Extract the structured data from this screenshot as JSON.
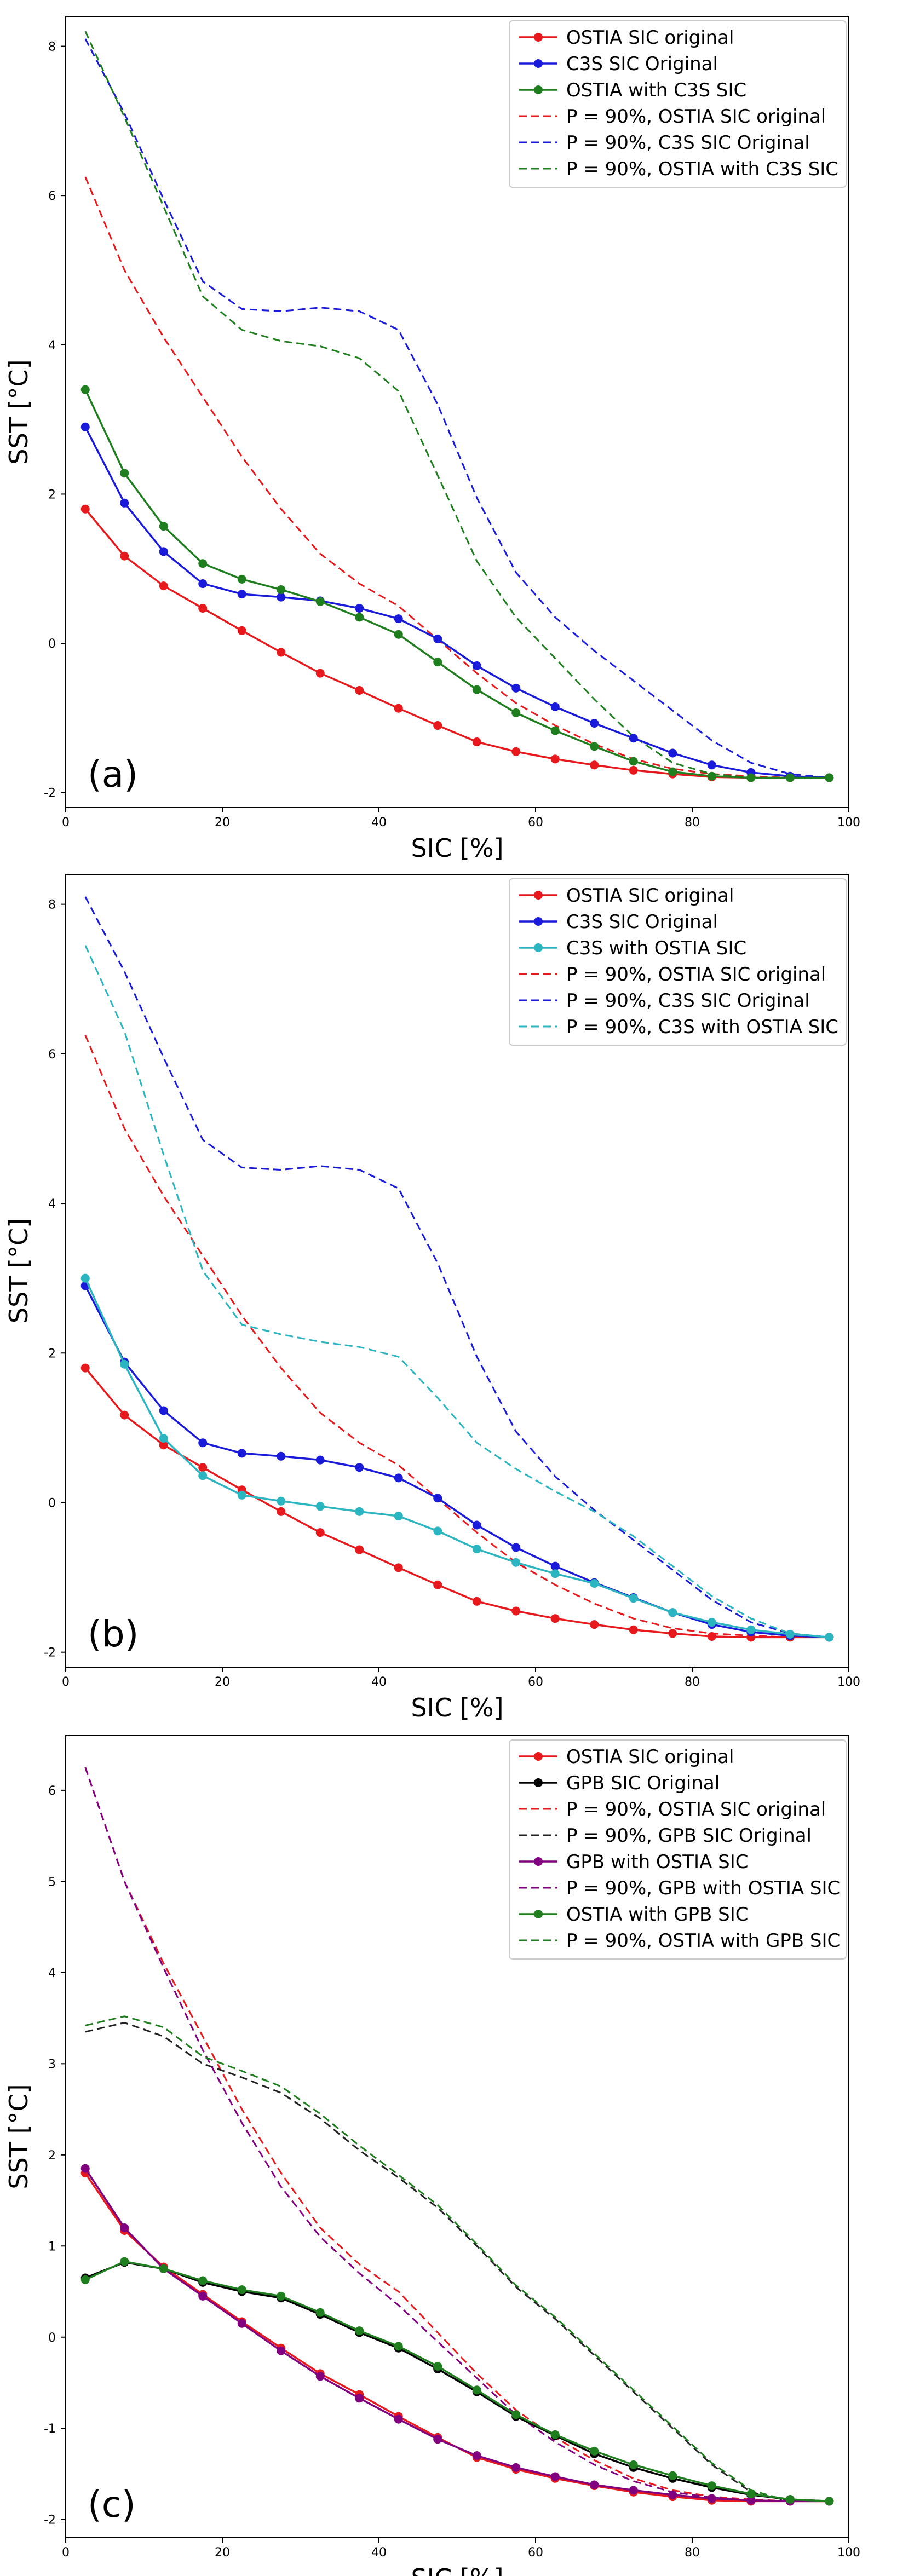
{
  "chart_data": [
    {
      "type": "line",
      "panel_label": "(a)",
      "xlabel": "SIC [%]",
      "ylabel": "SST [°C]",
      "xlim": [
        0,
        100
      ],
      "ylim": [
        -2.2,
        8.4
      ],
      "xticks": [
        0,
        20,
        40,
        60,
        80,
        100
      ],
      "yticks": [
        -2,
        0,
        2,
        4,
        6,
        8
      ],
      "x": [
        2.5,
        7.5,
        12.5,
        17.5,
        22.5,
        27.5,
        32.5,
        37.5,
        42.5,
        47.5,
        52.5,
        57.5,
        62.5,
        67.5,
        72.5,
        77.5,
        82.5,
        87.5,
        92.5,
        97.5
      ],
      "legend_position": "top-right",
      "series": [
        {
          "name": "OSTIA SIC original",
          "color": "#e8191c",
          "style": "solid-marker",
          "values": [
            1.8,
            1.17,
            0.77,
            0.47,
            0.17,
            -0.12,
            -0.4,
            -0.63,
            -0.87,
            -1.1,
            -1.32,
            -1.45,
            -1.55,
            -1.63,
            -1.7,
            -1.75,
            -1.79,
            -1.8,
            -1.8,
            -1.8
          ]
        },
        {
          "name": "C3S SIC Original",
          "color": "#1a1adb",
          "style": "solid-marker",
          "values": [
            2.9,
            1.88,
            1.23,
            0.8,
            0.66,
            0.62,
            0.57,
            0.47,
            0.33,
            0.06,
            -0.3,
            -0.6,
            -0.85,
            -1.07,
            -1.27,
            -1.47,
            -1.63,
            -1.73,
            -1.78,
            -1.8
          ]
        },
        {
          "name": "OSTIA with C3S SIC",
          "color": "#1f7f1f",
          "style": "solid-marker",
          "values": [
            3.4,
            2.28,
            1.57,
            1.07,
            0.86,
            0.72,
            0.56,
            0.35,
            0.12,
            -0.25,
            -0.62,
            -0.93,
            -1.17,
            -1.38,
            -1.58,
            -1.72,
            -1.78,
            -1.8,
            -1.8,
            -1.8
          ]
        },
        {
          "name": "P = 90%, OSTIA SIC original",
          "color": "#e8191c",
          "style": "dashed",
          "values": [
            6.25,
            5.0,
            4.1,
            3.3,
            2.5,
            1.8,
            1.2,
            0.8,
            0.5,
            0.05,
            -0.4,
            -0.8,
            -1.1,
            -1.35,
            -1.55,
            -1.68,
            -1.75,
            -1.78,
            -1.8,
            -1.8
          ]
        },
        {
          "name": "P = 90%, C3S SIC Original",
          "color": "#1a1adb",
          "style": "dashed",
          "values": [
            8.1,
            7.1,
            5.95,
            4.85,
            4.48,
            4.45,
            4.5,
            4.45,
            4.2,
            3.2,
            1.95,
            0.95,
            0.35,
            -0.1,
            -0.5,
            -0.9,
            -1.3,
            -1.6,
            -1.75,
            -1.8
          ]
        },
        {
          "name": "P = 90%, OSTIA with C3S SIC",
          "color": "#1f7f1f",
          "style": "dashed",
          "values": [
            8.2,
            7.05,
            5.85,
            4.65,
            4.2,
            4.05,
            3.98,
            3.82,
            3.38,
            2.25,
            1.1,
            0.35,
            -0.2,
            -0.75,
            -1.25,
            -1.6,
            -1.75,
            -1.8,
            -1.8,
            -1.8
          ]
        }
      ]
    },
    {
      "type": "line",
      "panel_label": "(b)",
      "xlabel": "SIC [%]",
      "ylabel": "SST [°C]",
      "xlim": [
        0,
        100
      ],
      "ylim": [
        -2.2,
        8.4
      ],
      "xticks": [
        0,
        20,
        40,
        60,
        80,
        100
      ],
      "yticks": [
        -2,
        0,
        2,
        4,
        6,
        8
      ],
      "x": [
        2.5,
        7.5,
        12.5,
        17.5,
        22.5,
        27.5,
        32.5,
        37.5,
        42.5,
        47.5,
        52.5,
        57.5,
        62.5,
        67.5,
        72.5,
        77.5,
        82.5,
        87.5,
        92.5,
        97.5
      ],
      "legend_position": "top-right",
      "series": [
        {
          "name": "OSTIA SIC original",
          "color": "#e8191c",
          "style": "solid-marker",
          "values": [
            1.8,
            1.17,
            0.77,
            0.47,
            0.17,
            -0.12,
            -0.4,
            -0.63,
            -0.87,
            -1.1,
            -1.32,
            -1.45,
            -1.55,
            -1.63,
            -1.7,
            -1.75,
            -1.79,
            -1.8,
            -1.8,
            -1.8
          ]
        },
        {
          "name": "C3S SIC Original",
          "color": "#1a1adb",
          "style": "solid-marker",
          "values": [
            2.9,
            1.88,
            1.23,
            0.8,
            0.66,
            0.62,
            0.57,
            0.47,
            0.33,
            0.06,
            -0.3,
            -0.6,
            -0.85,
            -1.07,
            -1.27,
            -1.47,
            -1.63,
            -1.73,
            -1.78,
            -1.8
          ]
        },
        {
          "name": "C3S with OSTIA SIC",
          "color": "#2bb5c0",
          "style": "solid-marker",
          "values": [
            3.0,
            1.85,
            0.86,
            0.36,
            0.1,
            0.02,
            -0.05,
            -0.12,
            -0.18,
            -0.38,
            -0.62,
            -0.8,
            -0.95,
            -1.08,
            -1.28,
            -1.47,
            -1.6,
            -1.7,
            -1.76,
            -1.8
          ]
        },
        {
          "name": "P = 90%, OSTIA SIC original",
          "color": "#e8191c",
          "style": "dashed",
          "values": [
            6.25,
            5.0,
            4.1,
            3.3,
            2.5,
            1.8,
            1.2,
            0.8,
            0.5,
            0.05,
            -0.4,
            -0.8,
            -1.1,
            -1.35,
            -1.55,
            -1.68,
            -1.75,
            -1.78,
            -1.8,
            -1.8
          ]
        },
        {
          "name": "P = 90%, C3S SIC Original",
          "color": "#1a1adb",
          "style": "dashed",
          "values": [
            8.1,
            7.1,
            5.95,
            4.85,
            4.48,
            4.45,
            4.5,
            4.45,
            4.2,
            3.2,
            1.95,
            0.95,
            0.35,
            -0.1,
            -0.5,
            -0.9,
            -1.3,
            -1.6,
            -1.75,
            -1.8
          ]
        },
        {
          "name": "P = 90%, C3S with OSTIA SIC",
          "color": "#2bb5c0",
          "style": "dashed",
          "values": [
            7.45,
            6.3,
            4.65,
            3.1,
            2.38,
            2.25,
            2.15,
            2.08,
            1.95,
            1.4,
            0.8,
            0.45,
            0.15,
            -0.12,
            -0.45,
            -0.85,
            -1.25,
            -1.55,
            -1.75,
            -1.8
          ]
        }
      ]
    },
    {
      "type": "line",
      "panel_label": "(c)",
      "xlabel": "SIC [%]",
      "ylabel": "SST [°C]",
      "xlim": [
        0,
        100
      ],
      "ylim": [
        -2.2,
        6.6
      ],
      "xticks": [
        0,
        20,
        40,
        60,
        80,
        100
      ],
      "yticks": [
        -2,
        -1,
        0,
        1,
        2,
        3,
        4,
        5,
        6
      ],
      "x": [
        2.5,
        7.5,
        12.5,
        17.5,
        22.5,
        27.5,
        32.5,
        37.5,
        42.5,
        47.5,
        52.5,
        57.5,
        62.5,
        67.5,
        72.5,
        77.5,
        82.5,
        87.5,
        92.5,
        97.5
      ],
      "legend_position": "top-right",
      "series": [
        {
          "name": "OSTIA SIC original",
          "color": "#e8191c",
          "style": "solid-marker",
          "values": [
            1.8,
            1.17,
            0.77,
            0.47,
            0.17,
            -0.12,
            -0.4,
            -0.63,
            -0.87,
            -1.1,
            -1.32,
            -1.45,
            -1.55,
            -1.63,
            -1.7,
            -1.75,
            -1.79,
            -1.8,
            -1.8,
            -1.8
          ]
        },
        {
          "name": "GPB SIC Original",
          "color": "#000000",
          "style": "solid-marker",
          "values": [
            0.65,
            0.82,
            0.75,
            0.6,
            0.5,
            0.43,
            0.25,
            0.05,
            -0.12,
            -0.35,
            -0.6,
            -0.87,
            -1.08,
            -1.28,
            -1.43,
            -1.55,
            -1.65,
            -1.73,
            -1.78,
            -1.8
          ]
        },
        {
          "name": "P = 90%, OSTIA SIC original",
          "color": "#e8191c",
          "style": "dashed",
          "values": [
            6.25,
            5.0,
            4.1,
            3.3,
            2.5,
            1.8,
            1.2,
            0.8,
            0.5,
            0.05,
            -0.4,
            -0.8,
            -1.1,
            -1.35,
            -1.55,
            -1.68,
            -1.75,
            -1.78,
            -1.8,
            -1.8
          ]
        },
        {
          "name": "P = 90%, GPB SIC Original",
          "color": "#222222",
          "style": "dashed",
          "values": [
            3.35,
            3.45,
            3.3,
            3.0,
            2.85,
            2.68,
            2.4,
            2.05,
            1.75,
            1.42,
            1.0,
            0.55,
            0.2,
            -0.2,
            -0.6,
            -1.0,
            -1.4,
            -1.7,
            -1.8,
            -1.8
          ]
        },
        {
          "name": "GPB with OSTIA SIC",
          "color": "#800080",
          "style": "solid-marker",
          "values": [
            1.85,
            1.2,
            0.75,
            0.45,
            0.15,
            -0.15,
            -0.43,
            -0.67,
            -0.9,
            -1.12,
            -1.3,
            -1.43,
            -1.53,
            -1.62,
            -1.68,
            -1.73,
            -1.77,
            -1.79,
            -1.8,
            -1.8
          ]
        },
        {
          "name": "P = 90%, GPB with OSTIA SIC",
          "color": "#800080",
          "style": "dashed",
          "values": [
            6.25,
            5.0,
            4.05,
            3.15,
            2.35,
            1.65,
            1.1,
            0.7,
            0.35,
            -0.05,
            -0.45,
            -0.85,
            -1.15,
            -1.4,
            -1.58,
            -1.7,
            -1.76,
            -1.79,
            -1.8,
            -1.8
          ]
        },
        {
          "name": "OSTIA with GPB SIC",
          "color": "#1f7f1f",
          "style": "solid-marker",
          "values": [
            0.63,
            0.83,
            0.75,
            0.62,
            0.52,
            0.45,
            0.27,
            0.07,
            -0.1,
            -0.32,
            -0.58,
            -0.85,
            -1.07,
            -1.25,
            -1.4,
            -1.52,
            -1.63,
            -1.72,
            -1.78,
            -1.8
          ]
        },
        {
          "name": "P = 90%, OSTIA with GPB SIC",
          "color": "#1f7f1f",
          "style": "dashed",
          "values": [
            3.42,
            3.52,
            3.4,
            3.08,
            2.92,
            2.75,
            2.45,
            2.1,
            1.78,
            1.45,
            1.02,
            0.57,
            0.22,
            -0.18,
            -0.58,
            -0.98,
            -1.38,
            -1.68,
            -1.8,
            -1.8
          ]
        }
      ]
    }
  ]
}
